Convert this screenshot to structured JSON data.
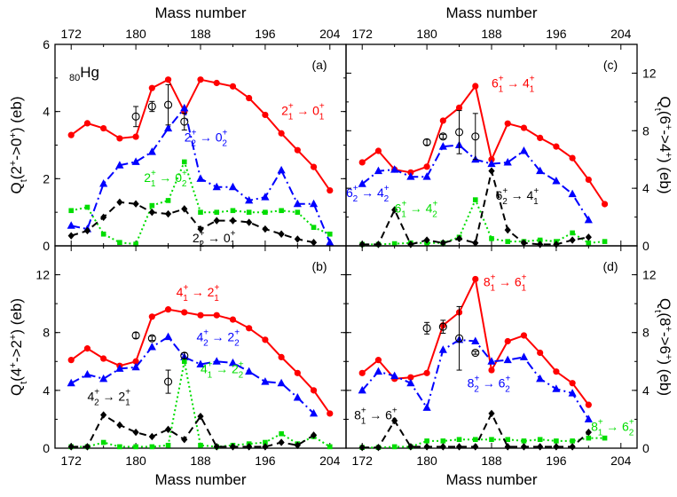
{
  "chart_data": [
    {
      "panel": "(a)",
      "type": "line",
      "element_label": {
        "sub": "80",
        "text": "Hg"
      },
      "top_xlabel": "Mass number",
      "ylabel": "Q_t(2^+->0^+) (eb)",
      "ylabel_side": "left",
      "xlim": [
        170,
        206
      ],
      "ylim": [
        0,
        6
      ],
      "xticks": [
        172,
        180,
        188,
        196,
        204
      ],
      "yticks": [
        0,
        2,
        4,
        6
      ],
      "series": [
        {
          "color": "#ff0000",
          "style": "solid",
          "marker": "circle",
          "x": [
            172,
            174,
            176,
            178,
            180,
            182,
            184,
            186,
            188,
            190,
            192,
            194,
            196,
            198,
            200,
            202,
            204
          ],
          "y": [
            3.3,
            3.65,
            3.5,
            3.2,
            3.25,
            4.7,
            4.95,
            4.0,
            4.95,
            4.85,
            4.75,
            4.4,
            3.9,
            3.35,
            2.85,
            2.35,
            1.65
          ]
        },
        {
          "color": "#0000ff",
          "style": "dashdot",
          "marker": "triangle",
          "x": [
            172,
            174,
            176,
            178,
            180,
            182,
            184,
            186,
            188,
            190,
            192,
            194,
            196,
            198,
            200,
            202,
            204
          ],
          "y": [
            0.6,
            0.5,
            1.85,
            2.4,
            2.5,
            2.8,
            3.5,
            4.1,
            2.0,
            1.75,
            1.75,
            1.35,
            1.45,
            2.25,
            1.25,
            1.25,
            0.1
          ]
        },
        {
          "color": "#00dd00",
          "style": "dotted",
          "marker": "square",
          "x": [
            172,
            174,
            176,
            178,
            180,
            182,
            184,
            186,
            188,
            190,
            192,
            194,
            196,
            198,
            200,
            202,
            204
          ],
          "y": [
            1.05,
            1.15,
            0.35,
            0.1,
            0.05,
            1.2,
            1.35,
            2.5,
            1.0,
            1.0,
            1.05,
            1.0,
            1.0,
            1.05,
            1.0,
            0.55,
            0.35
          ]
        },
        {
          "color": "#000000",
          "style": "dashed",
          "marker": "diamond",
          "x": [
            172,
            174,
            176,
            178,
            180,
            182,
            184,
            186,
            188,
            190,
            192,
            194,
            196,
            198,
            200,
            202
          ],
          "y": [
            0.3,
            0.45,
            0.85,
            1.3,
            1.25,
            1.0,
            0.95,
            1.1,
            0.5,
            0.75,
            0.75,
            0.7,
            0.5,
            0.35,
            0.2,
            0.1
          ]
        },
        {
          "color": "#000000",
          "style": "none",
          "marker": "open-circle",
          "x": [
            180,
            182,
            184,
            186
          ],
          "y": [
            3.85,
            4.15,
            4.2,
            3.7
          ],
          "err": [
            0.3,
            0.15,
            0.6,
            0.25
          ]
        }
      ],
      "annotations": [
        {
          "color": "#ff0000",
          "x": 198,
          "y": 3.9,
          "parts": [
            "2",
            "1",
            "0",
            "1"
          ]
        },
        {
          "color": "#0000ff",
          "x": 186,
          "y": 3.1,
          "parts": [
            "2",
            "2",
            "0",
            "2"
          ]
        },
        {
          "color": "#00dd00",
          "x": 181,
          "y": 1.9,
          "parts": [
            "2",
            "1",
            "0",
            "2"
          ]
        },
        {
          "color": "#000000",
          "x": 187,
          "y": 0.1,
          "parts": [
            "2",
            "2",
            "0",
            "1"
          ]
        }
      ]
    },
    {
      "panel": "(c)",
      "type": "line",
      "top_xlabel": "Mass number",
      "ylabel": "Q_t(6^+->4^+) (eb)",
      "ylabel_side": "right",
      "xlim": [
        170,
        206
      ],
      "ylim": [
        0,
        14
      ],
      "xticks": [
        172,
        180,
        188,
        196,
        204
      ],
      "yticks": [
        0,
        4,
        8,
        12
      ],
      "series": [
        {
          "color": "#ff0000",
          "style": "solid",
          "marker": "circle",
          "x": [
            172,
            174,
            176,
            178,
            180,
            182,
            184,
            186,
            188,
            190,
            192,
            194,
            196,
            198,
            200,
            202
          ],
          "y": [
            5.8,
            6.6,
            5.3,
            5.1,
            5.5,
            8.7,
            9.6,
            11.1,
            6.0,
            8.5,
            8.2,
            7.5,
            6.9,
            6.1,
            4.6,
            2.9
          ]
        },
        {
          "color": "#0000ff",
          "style": "dashdot",
          "marker": "triangle",
          "x": [
            172,
            174,
            176,
            178,
            180,
            182,
            184,
            186,
            188,
            190,
            192,
            194,
            196,
            198,
            200
          ],
          "y": [
            4.3,
            5.2,
            5.3,
            4.8,
            4.8,
            6.9,
            7.0,
            6.0,
            5.7,
            5.8,
            6.6,
            5.2,
            4.5,
            3.6,
            1.8
          ]
        },
        {
          "color": "#00dd00",
          "style": "dotted",
          "marker": "square",
          "x": [
            172,
            174,
            176,
            178,
            180,
            182,
            184,
            186,
            188,
            190,
            192,
            194,
            196,
            198,
            200,
            202
          ],
          "y": [
            0.1,
            0.1,
            0.15,
            0.2,
            0.2,
            0.2,
            0.6,
            3.2,
            0.5,
            0.3,
            0.3,
            0.4,
            0.3,
            0.9,
            0.2,
            0.3
          ]
        },
        {
          "color": "#000000",
          "style": "dashed",
          "marker": "diamond",
          "x": [
            172,
            174,
            176,
            178,
            180,
            182,
            184,
            186,
            188,
            190,
            192,
            194,
            196,
            198,
            200
          ],
          "y": [
            0.1,
            0.1,
            2.5,
            0.1,
            0.4,
            0.2,
            0.5,
            0.2,
            5.2,
            1.1,
            0.2,
            0.1,
            0.1,
            0.4,
            0.6
          ]
        },
        {
          "color": "#000000",
          "style": "none",
          "marker": "open-circle",
          "x": [
            180,
            182,
            184,
            186
          ],
          "y": [
            7.2,
            7.6,
            7.9,
            7.6
          ],
          "err": [
            0.2,
            0.15,
            1.5,
            1.6
          ]
        }
      ],
      "annotations": [
        {
          "color": "#ff0000",
          "x": 188,
          "y": 11.0,
          "parts": [
            "6",
            "1",
            "4",
            "1"
          ]
        },
        {
          "color": "#0000ff",
          "x": 170,
          "y": 3.4,
          "parts": [
            "6",
            "2",
            "4",
            "2"
          ]
        },
        {
          "color": "#00dd00",
          "x": 176,
          "y": 2.3,
          "parts": [
            "6",
            "1",
            "4",
            "2"
          ]
        },
        {
          "color": "#000000",
          "x": 188.5,
          "y": 3.2,
          "parts": [
            "6",
            "2",
            "4",
            "1"
          ]
        }
      ]
    },
    {
      "panel": "(b)",
      "type": "line",
      "xlabel": "Mass number",
      "ylabel": "Q_t(4^+->2^+) (eb)",
      "ylabel_side": "left",
      "xlim": [
        170,
        206
      ],
      "ylim": [
        0,
        14
      ],
      "xticks": [
        172,
        180,
        188,
        196,
        204
      ],
      "yticks": [
        0,
        4,
        8,
        12
      ],
      "series": [
        {
          "color": "#ff0000",
          "style": "solid",
          "marker": "circle",
          "x": [
            172,
            174,
            176,
            178,
            180,
            182,
            184,
            186,
            188,
            190,
            192,
            194,
            196,
            198,
            200,
            202,
            204
          ],
          "y": [
            6.1,
            6.9,
            6.2,
            5.7,
            6.0,
            9.1,
            9.6,
            9.4,
            9.2,
            9.2,
            8.9,
            8.3,
            7.5,
            6.3,
            5.2,
            4.0,
            2.4
          ]
        },
        {
          "color": "#0000ff",
          "style": "dashdot",
          "marker": "triangle",
          "x": [
            172,
            174,
            176,
            178,
            180,
            182,
            184,
            186,
            188,
            190,
            192,
            194,
            196,
            198,
            200,
            202
          ],
          "y": [
            4.5,
            5.1,
            4.8,
            5.5,
            5.6,
            7.0,
            7.7,
            6.3,
            5.8,
            6.0,
            5.9,
            5.3,
            4.6,
            4.5,
            3.5,
            2.4
          ]
        },
        {
          "color": "#00dd00",
          "style": "dotted",
          "marker": "square",
          "x": [
            172,
            174,
            176,
            178,
            180,
            182,
            184,
            186,
            188,
            190,
            192,
            194,
            196,
            198,
            200,
            202,
            204
          ],
          "y": [
            0.1,
            0.1,
            0.4,
            0.1,
            0.1,
            0.1,
            0.2,
            6.0,
            0.2,
            0.1,
            0.2,
            0.3,
            0.4,
            1.0,
            0.3,
            0.8,
            0.1
          ]
        },
        {
          "color": "#000000",
          "style": "dashed",
          "marker": "diamond",
          "x": [
            172,
            174,
            176,
            178,
            180,
            182,
            184,
            186,
            188,
            190,
            192,
            194,
            196,
            198,
            200,
            202
          ],
          "y": [
            0.1,
            0.1,
            2.3,
            1.6,
            1.1,
            0.8,
            1.3,
            0.6,
            2.2,
            0.1,
            0.1,
            0.1,
            0.1,
            0.4,
            0.2,
            0.9
          ]
        },
        {
          "color": "#000000",
          "style": "none",
          "marker": "open-circle",
          "x": [
            180,
            182,
            184,
            186
          ],
          "y": [
            7.8,
            7.6,
            4.6,
            6.4
          ],
          "err": [
            0.2,
            0.15,
            0.8,
            0.2
          ]
        }
      ],
      "annotations": [
        {
          "color": "#ff0000",
          "x": 185,
          "y": 10.5,
          "parts": [
            "4",
            "1",
            "2",
            "1"
          ]
        },
        {
          "color": "#0000ff",
          "x": 187.5,
          "y": 7.4,
          "parts": [
            "4",
            "2",
            "2",
            "2"
          ]
        },
        {
          "color": "#00dd00",
          "x": 188,
          "y": 5.2,
          "parts": [
            "4",
            "1",
            "2",
            "2"
          ]
        },
        {
          "color": "#000000",
          "x": 174,
          "y": 3.3,
          "parts": [
            "4",
            "2",
            "2",
            "1"
          ]
        }
      ]
    },
    {
      "panel": "(d)",
      "type": "line",
      "xlabel": "Mass number",
      "ylabel": "Q_t(8^+->6^+) (eb)",
      "ylabel_side": "right",
      "xlim": [
        170,
        206
      ],
      "ylim": [
        0,
        14
      ],
      "xticks": [
        172,
        180,
        188,
        196,
        204
      ],
      "yticks": [
        0,
        4,
        8,
        12
      ],
      "series": [
        {
          "color": "#ff0000",
          "style": "solid",
          "marker": "circle",
          "x": [
            172,
            174,
            176,
            178,
            180,
            182,
            184,
            186,
            188,
            190,
            192,
            194,
            196,
            198,
            200
          ],
          "y": [
            5.2,
            6.1,
            4.8,
            4.9,
            5.2,
            8.5,
            9.4,
            11.7,
            5.4,
            7.4,
            7.8,
            6.6,
            5.3,
            4.5,
            3.0
          ]
        },
        {
          "color": "#0000ff",
          "style": "dashdot",
          "marker": "triangle",
          "x": [
            172,
            174,
            176,
            178,
            180,
            182,
            184,
            186,
            188,
            190,
            192,
            194,
            196,
            198,
            200
          ],
          "y": [
            4.0,
            5.3,
            5.0,
            4.5,
            2.8,
            6.8,
            7.5,
            7.4,
            6.0,
            6.1,
            6.3,
            4.8,
            4.1,
            3.8,
            2.0
          ]
        },
        {
          "color": "#00dd00",
          "style": "dotted",
          "marker": "square",
          "x": [
            172,
            174,
            176,
            178,
            180,
            182,
            184,
            186,
            188,
            190,
            192,
            194,
            196,
            198,
            200,
            202
          ],
          "y": [
            0.05,
            0.05,
            0.1,
            0.1,
            0.5,
            0.5,
            0.6,
            0.6,
            0.6,
            0.6,
            0.5,
            0.6,
            0.5,
            0.5,
            0.7,
            0.7
          ]
        },
        {
          "color": "#000000",
          "style": "dashed",
          "marker": "diamond",
          "x": [
            172,
            174,
            176,
            178,
            180,
            182,
            184,
            186,
            188,
            190,
            192,
            194,
            196,
            198,
            200
          ],
          "y": [
            0.05,
            0.05,
            1.9,
            0.1,
            0.1,
            0.1,
            0.1,
            0.1,
            2.4,
            0.1,
            0.1,
            0.1,
            0.1,
            0.1,
            1.1
          ]
        },
        {
          "color": "#000000",
          "style": "none",
          "marker": "open-circle",
          "x": [
            180,
            182,
            184,
            186
          ],
          "y": [
            8.3,
            8.4,
            7.6,
            6.6
          ],
          "err": [
            0.4,
            0.45,
            2.2,
            0.1
          ]
        }
      ],
      "annotations": [
        {
          "color": "#ff0000",
          "x": 187,
          "y": 11.2,
          "parts": [
            "8",
            "1",
            "6",
            "1"
          ]
        },
        {
          "color": "#0000ff",
          "x": 185,
          "y": 4.2,
          "parts": [
            "8",
            "2",
            "6",
            "2"
          ]
        },
        {
          "color": "#00dd00",
          "x": 200.3,
          "y": 1.2,
          "parts": [
            "8",
            "1",
            "6",
            "2"
          ]
        },
        {
          "color": "#000000",
          "x": 171,
          "y": 2.0,
          "parts": [
            "8",
            "1",
            "6",
            "2"
          ]
        }
      ]
    }
  ]
}
